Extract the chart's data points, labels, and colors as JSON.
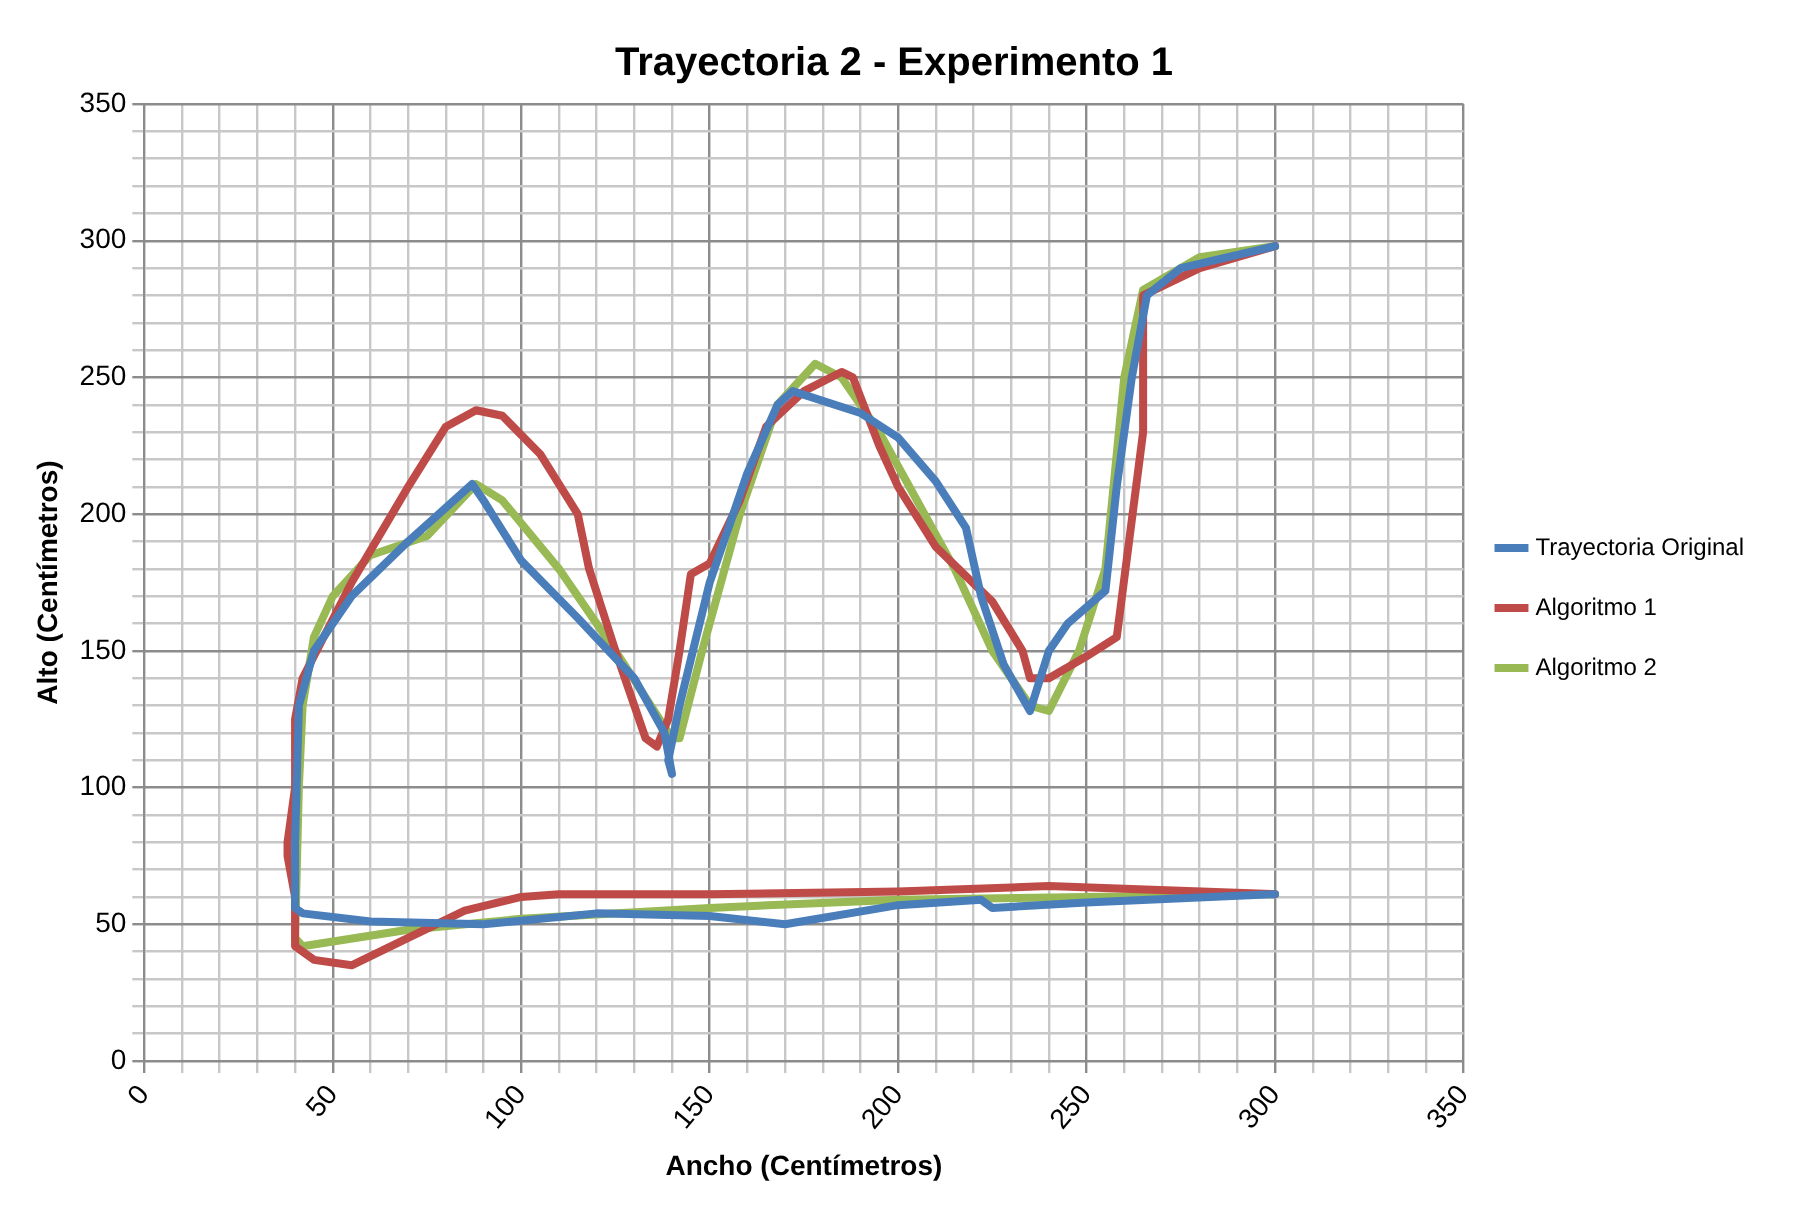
{
  "chart_data": {
    "type": "line",
    "title": "Trayectoria 2 - Experimento 1",
    "xlabel": "Ancho (Centímetros)",
    "ylabel": "Alto (Centímetros)",
    "xlim": [
      0,
      350
    ],
    "ylim": [
      0,
      350
    ],
    "xticks": [
      0,
      {
        "value": 10,
        "label": null
      },
      {
        "value": 20,
        "label": null
      },
      {
        "value": 30,
        "label": null
      },
      {
        "value": 40,
        "label": null
      },
      50,
      {
        "value": 60,
        "label": null
      },
      {
        "value": 70,
        "label": null
      },
      {
        "value": 80,
        "label": null
      },
      {
        "value": 90,
        "label": null
      },
      100,
      {
        "value": 110,
        "label": null
      },
      {
        "value": 120,
        "label": null
      },
      {
        "value": 130,
        "label": null
      },
      {
        "value": 140,
        "label": null
      },
      150,
      {
        "value": 160,
        "label": null
      },
      {
        "value": 170,
        "label": null
      },
      {
        "value": 180,
        "label": null
      },
      {
        "value": 190,
        "label": null
      },
      200,
      {
        "value": 210,
        "label": null
      },
      {
        "value": 220,
        "label": null
      },
      {
        "value": 230,
        "label": null
      },
      {
        "value": 240,
        "label": null
      },
      250,
      {
        "value": 260,
        "label": null
      },
      {
        "value": 270,
        "label": null
      },
      {
        "value": 280,
        "label": null
      },
      {
        "value": 290,
        "label": null
      },
      300,
      {
        "value": 310,
        "label": null
      },
      {
        "value": 320,
        "label": null
      },
      {
        "value": 330,
        "label": null
      },
      {
        "value": 340,
        "label": null
      },
      350
    ],
    "yticks": [
      0,
      {
        "value": 10,
        "label": null
      },
      {
        "value": 20,
        "label": null
      },
      {
        "value": 30,
        "label": null
      },
      {
        "value": 40,
        "label": null
      },
      50,
      {
        "value": 60,
        "label": null
      },
      {
        "value": 70,
        "label": null
      },
      {
        "value": 80,
        "label": null
      },
      {
        "value": 90,
        "label": null
      },
      100,
      {
        "value": 110,
        "label": null
      },
      {
        "value": 120,
        "label": null
      },
      {
        "value": 130,
        "label": null
      },
      {
        "value": 140,
        "label": null
      },
      150,
      {
        "value": 160,
        "label": null
      },
      {
        "value": 170,
        "label": null
      },
      {
        "value": 180,
        "label": null
      },
      {
        "value": 190,
        "label": null
      },
      200,
      {
        "value": 210,
        "label": null
      },
      {
        "value": 220,
        "label": null
      },
      {
        "value": 230,
        "label": null
      },
      {
        "value": 240,
        "label": null
      },
      250,
      {
        "value": 260,
        "label": null
      },
      {
        "value": 270,
        "label": null
      },
      {
        "value": 280,
        "label": null
      },
      {
        "value": 290,
        "label": null
      },
      300,
      {
        "value": 310,
        "label": null
      },
      {
        "value": 320,
        "label": null
      },
      {
        "value": 330,
        "label": null
      },
      {
        "value": 340,
        "label": null
      },
      350
    ],
    "grid": true,
    "legend": "right",
    "marker": "none",
    "line_style": "solid",
    "series": [
      {
        "name": "Trayectoria Original",
        "color": "#4a7ebb",
        "x": [
          300,
          250,
          225,
          222,
          200,
          170,
          150,
          120,
          90,
          60,
          42,
          40,
          40,
          41,
          45,
          55,
          70,
          87,
          90,
          100,
          115,
          130,
          138,
          140,
          139,
          142,
          150,
          160,
          168,
          172,
          190,
          200,
          210,
          218,
          222,
          228,
          235,
          240,
          245,
          255,
          258,
          262,
          266,
          275,
          300
        ],
        "values": [
          61,
          58,
          56,
          59,
          57,
          50,
          53,
          54,
          50,
          51,
          54,
          56,
          80,
          130,
          150,
          170,
          190,
          211,
          205,
          183,
          162,
          140,
          120,
          105,
          110,
          130,
          175,
          215,
          240,
          245,
          237,
          228,
          212,
          195,
          170,
          145,
          128,
          150,
          160,
          172,
          210,
          250,
          280,
          290,
          298
        ]
      },
      {
        "name": "Algoritmo 1",
        "color": "#be4b48",
        "x": [
          300,
          260,
          240,
          200,
          150,
          110,
          100,
          85,
          70,
          55,
          45,
          40,
          40,
          38,
          38,
          40,
          40,
          42,
          55,
          70,
          80,
          88,
          95,
          105,
          115,
          118,
          125,
          133,
          136,
          139,
          142,
          145,
          150,
          158,
          165,
          175,
          185,
          188,
          195,
          200,
          210,
          225,
          233,
          235,
          240,
          250,
          258,
          265,
          265,
          280,
          300
        ],
        "values": [
          61,
          63,
          64,
          62,
          61,
          61,
          60,
          55,
          45,
          35,
          37,
          42,
          60,
          75,
          80,
          100,
          125,
          140,
          175,
          210,
          232,
          238,
          236,
          222,
          200,
          180,
          150,
          118,
          115,
          125,
          150,
          178,
          182,
          205,
          232,
          245,
          252,
          250,
          225,
          210,
          188,
          168,
          150,
          140,
          140,
          148,
          155,
          230,
          280,
          290,
          298
        ]
      },
      {
        "name": "Algoritmo 2",
        "color": "#98b954",
        "x": [
          300,
          250,
          200,
          150,
          100,
          70,
          42,
          40,
          41,
          42,
          45,
          50,
          60,
          75,
          88,
          95,
          110,
          125,
          140,
          142,
          148,
          158,
          168,
          178,
          185,
          195,
          205,
          215,
          225,
          235,
          240,
          248,
          255,
          260,
          265,
          280,
          300
        ],
        "values": [
          61,
          60,
          59,
          56,
          52,
          48,
          42,
          45,
          100,
          130,
          155,
          170,
          185,
          192,
          211,
          205,
          180,
          150,
          118,
          118,
          150,
          200,
          240,
          255,
          250,
          230,
          205,
          180,
          150,
          130,
          128,
          150,
          180,
          250,
          282,
          294,
          298
        ]
      }
    ]
  }
}
